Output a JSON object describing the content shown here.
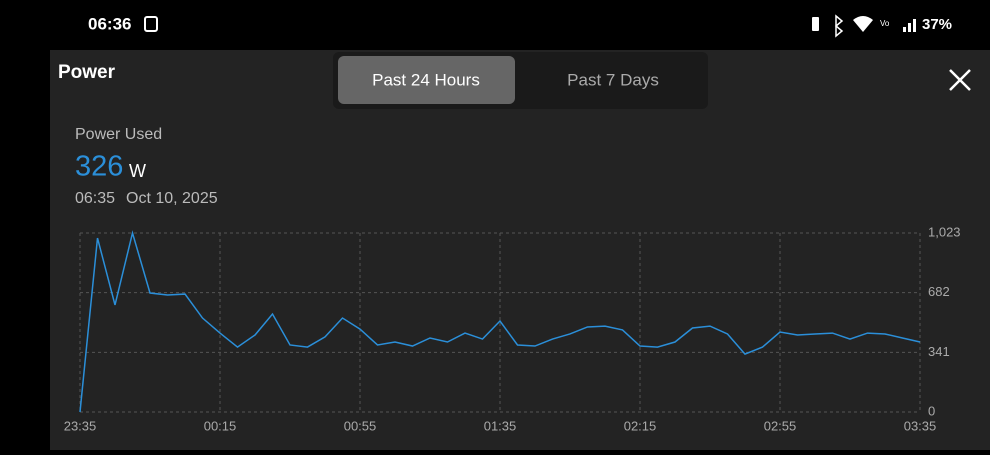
{
  "status_bar": {
    "time": "06:36",
    "battery": "37%"
  },
  "header": {
    "title": "Power",
    "tabs": [
      "Past 24 Hours",
      "Past 7 Days"
    ]
  },
  "summary": {
    "label": "Power Used",
    "value": "326",
    "unit": "W",
    "time": "06:35",
    "date": "Oct 10, 2025"
  },
  "chart_data": {
    "type": "line",
    "categories": [
      "23:35",
      null,
      null,
      null,
      null,
      null,
      null,
      null,
      "00:15",
      null,
      null,
      null,
      null,
      null,
      null,
      null,
      "00:55",
      null,
      null,
      null,
      null,
      null,
      null,
      null,
      "01:35",
      null,
      null,
      null,
      null,
      null,
      null,
      null,
      "02:15",
      null,
      null,
      null,
      null,
      null,
      null,
      null,
      "02:55",
      null,
      null,
      null,
      null,
      null,
      null,
      null,
      "03:35"
    ],
    "series": [
      {
        "name": "Power",
        "color": "#2b8fd9",
        "values": [
          0,
          994,
          612,
          1023,
          680,
          669,
          674,
          537,
          451,
          371,
          440,
          560,
          383,
          371,
          429,
          537,
          474,
          383,
          400,
          377,
          423,
          400,
          451,
          417,
          520,
          383,
          377,
          417,
          446,
          486,
          491,
          469,
          377,
          371,
          400,
          480,
          491,
          446,
          331,
          371,
          457,
          440,
          446,
          451,
          417,
          451,
          446,
          423,
          400
        ]
      }
    ],
    "ylim": [
      0,
      1023
    ],
    "yticks": [
      0,
      341,
      682,
      {
        "value": 1023,
        "label": "1,023"
      }
    ],
    "grid": true
  }
}
